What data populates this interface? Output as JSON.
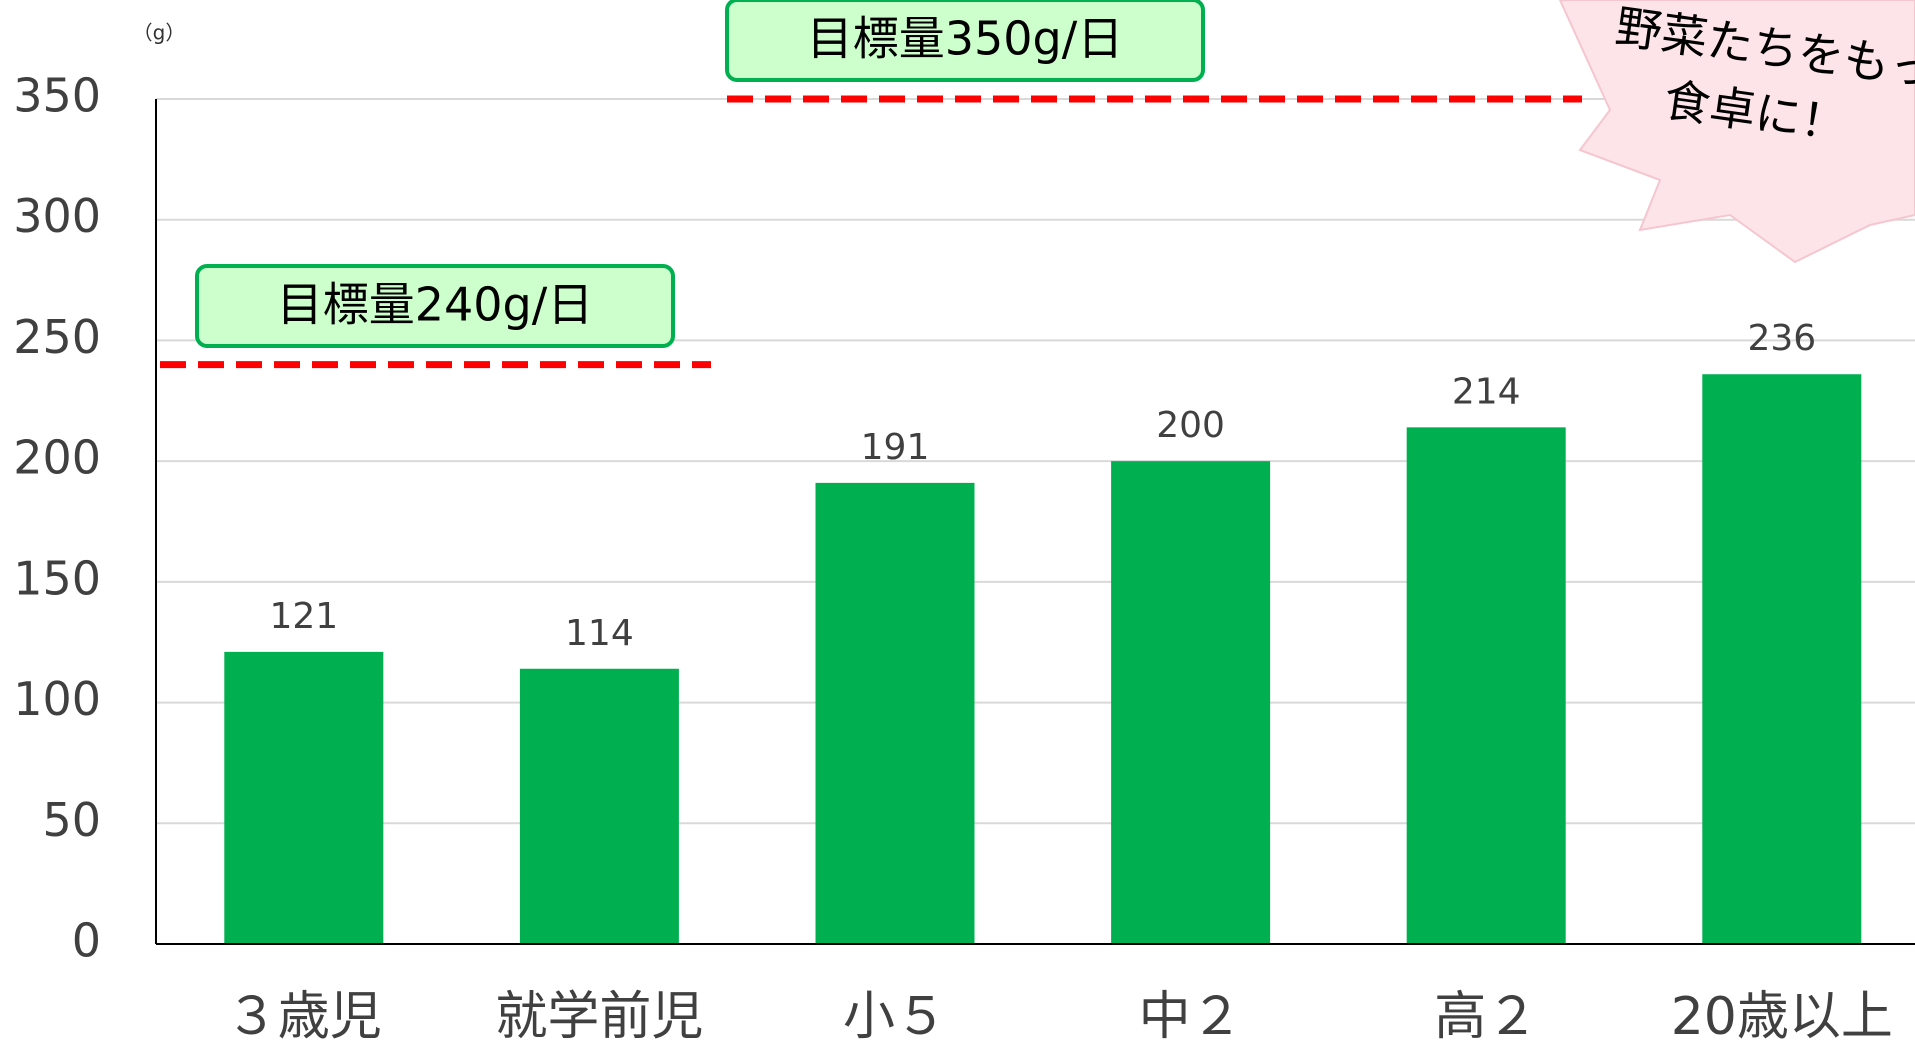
{
  "chart_data": {
    "type": "bar",
    "unit_label": "（g）",
    "categories": [
      "３歳児",
      "就学前児",
      "小５",
      "中２",
      "高２",
      "20歳以上"
    ],
    "values": [
      121,
      114,
      191,
      200,
      214,
      236
    ],
    "color": "#00b050",
    "ylim": [
      0,
      350
    ],
    "yticks": [
      0,
      50,
      100,
      150,
      200,
      250,
      300,
      350
    ],
    "grid": true,
    "targets": [
      {
        "label": "目標量240g/日",
        "value": 240,
        "color": "#ff0000"
      },
      {
        "label": "目標量350g/日",
        "value": 350,
        "color": "#ff0000"
      }
    ],
    "callout": [
      "野菜たちをもっ",
      "食卓に！"
    ]
  }
}
